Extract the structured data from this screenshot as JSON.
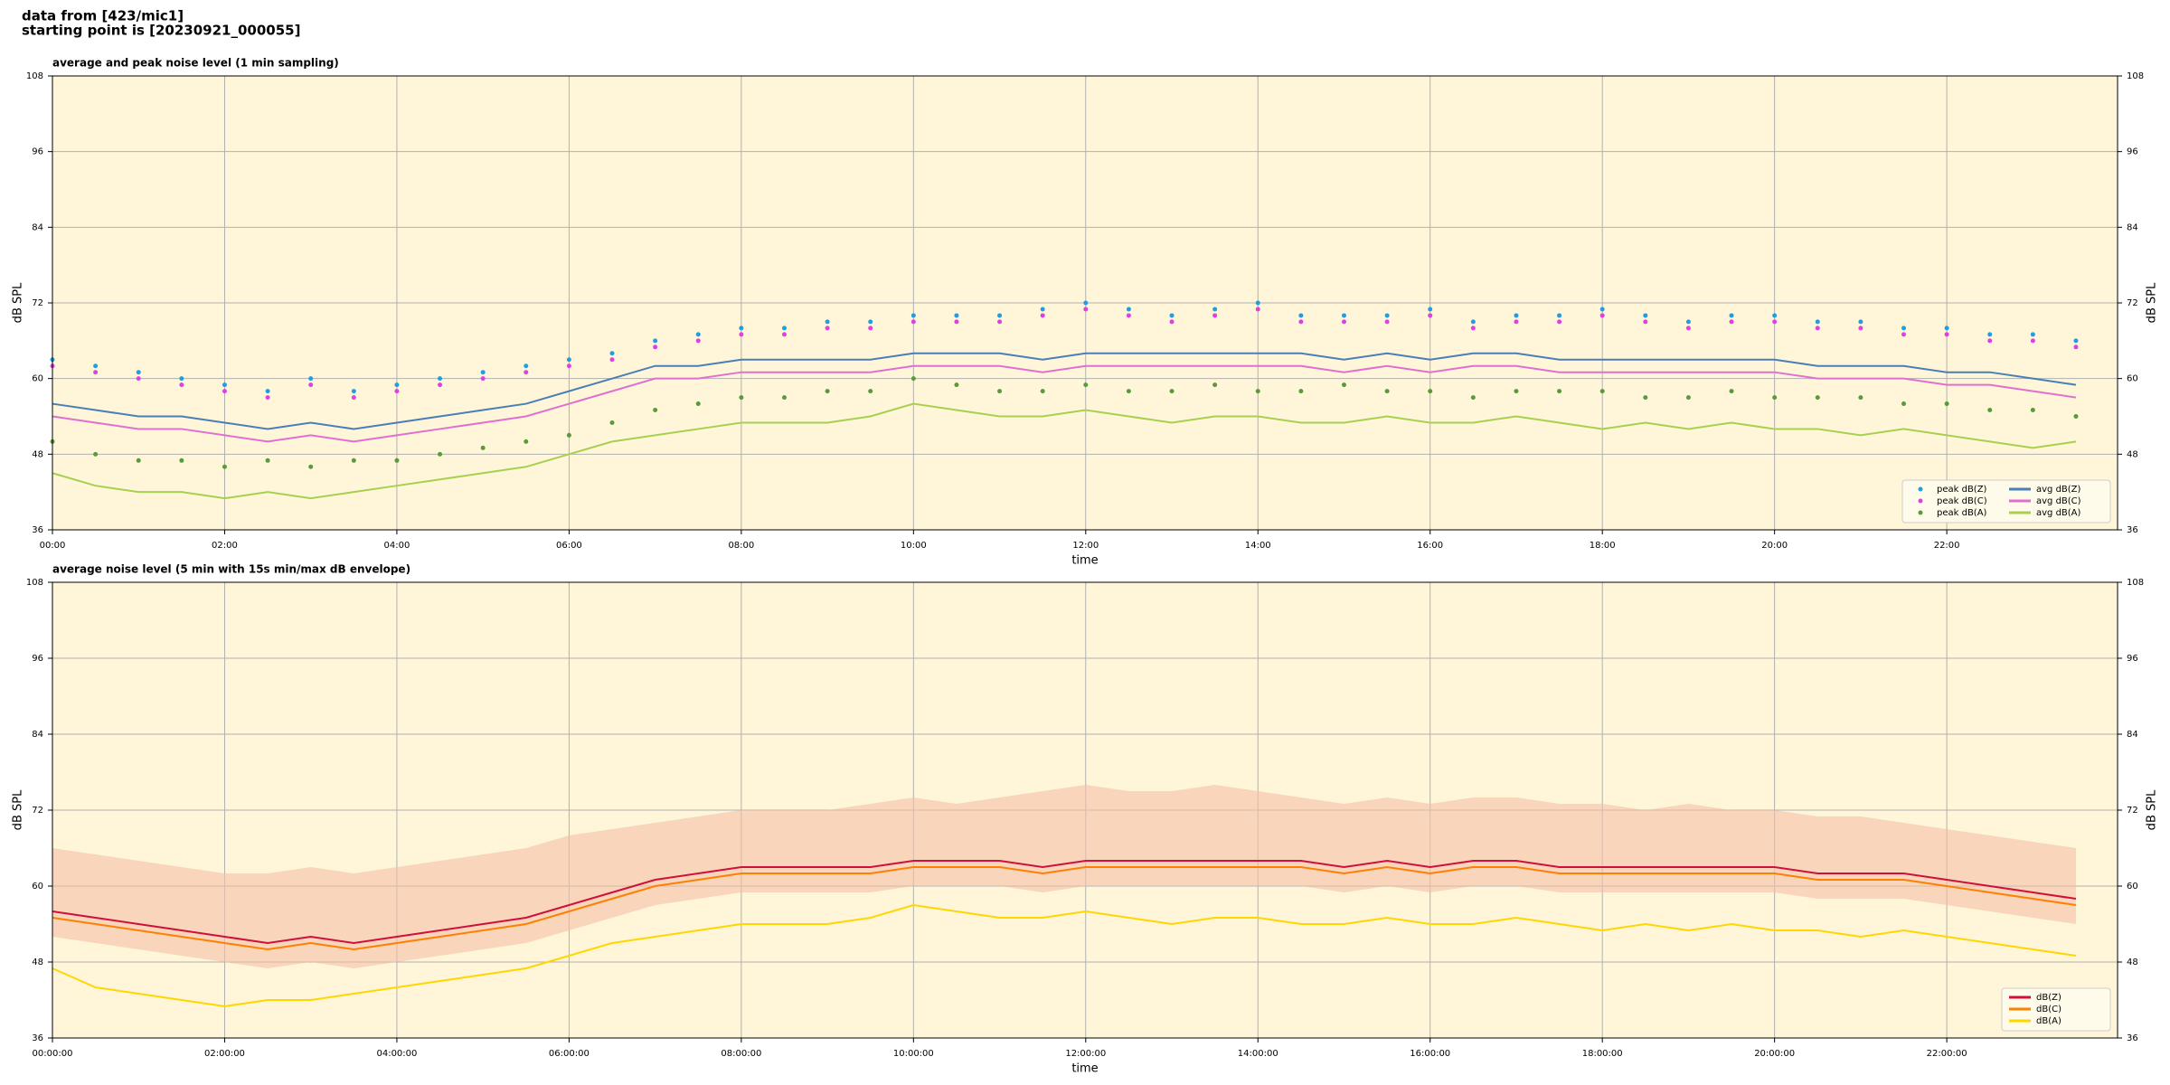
{
  "header": {
    "lines": [
      "data from [423/mic1]",
      "starting point is [20230921_000055]"
    ]
  },
  "chart_data": [
    {
      "type": "line",
      "title": "average and peak noise level (1 min sampling)",
      "xlabel": "time",
      "ylabel": "dB SPL",
      "x": [
        "00:00",
        "00:30",
        "01:00",
        "01:30",
        "02:00",
        "02:30",
        "03:00",
        "03:30",
        "04:00",
        "04:30",
        "05:00",
        "05:30",
        "06:00",
        "06:30",
        "07:00",
        "07:30",
        "08:00",
        "08:30",
        "09:00",
        "09:30",
        "10:00",
        "10:30",
        "11:00",
        "11:30",
        "12:00",
        "12:30",
        "13:00",
        "13:30",
        "14:00",
        "14:30",
        "15:00",
        "15:30",
        "16:00",
        "16:30",
        "17:00",
        "17:30",
        "18:00",
        "18:30",
        "19:00",
        "19:30",
        "20:00",
        "20:30",
        "21:00",
        "21:30",
        "22:00",
        "22:30",
        "23:00",
        "23:30"
      ],
      "xlim": [
        "00:00",
        "23:59"
      ],
      "xticks": [
        "00:00",
        "02:00",
        "04:00",
        "06:00",
        "08:00",
        "10:00",
        "12:00",
        "14:00",
        "16:00",
        "18:00",
        "20:00",
        "22:00"
      ],
      "ylim": [
        36,
        108
      ],
      "yticks": [
        36,
        48,
        60,
        72,
        84,
        96,
        108
      ],
      "grid": true,
      "background": "#fff6da",
      "legend": {
        "loc": "lower right",
        "ncol": 2
      },
      "series": [
        {
          "name": "peak dB(Z)",
          "marker": "dot",
          "color": "#1f9fe0",
          "values": [
            63,
            62,
            61,
            60,
            59,
            58,
            60,
            58,
            59,
            60,
            61,
            62,
            63,
            64,
            66,
            67,
            68,
            68,
            69,
            69,
            70,
            70,
            70,
            71,
            72,
            71,
            70,
            71,
            72,
            70,
            70,
            70,
            71,
            69,
            70,
            70,
            71,
            70,
            69,
            70,
            70,
            69,
            69,
            68,
            68,
            67,
            67,
            66
          ]
        },
        {
          "name": "peak dB(C)",
          "marker": "dot",
          "color": "#e040e0",
          "values": [
            62,
            61,
            60,
            59,
            58,
            57,
            59,
            57,
            58,
            59,
            60,
            61,
            62,
            63,
            65,
            66,
            67,
            67,
            68,
            68,
            69,
            69,
            69,
            70,
            71,
            70,
            69,
            70,
            71,
            69,
            69,
            69,
            70,
            68,
            69,
            69,
            70,
            69,
            68,
            69,
            69,
            68,
            68,
            67,
            67,
            66,
            66,
            65
          ]
        },
        {
          "name": "peak dB(A)",
          "marker": "dot",
          "color": "#5a9a3a",
          "values": [
            50,
            48,
            47,
            47,
            46,
            47,
            46,
            47,
            47,
            48,
            49,
            50,
            51,
            53,
            55,
            56,
            57,
            57,
            58,
            58,
            60,
            59,
            58,
            58,
            59,
            58,
            58,
            59,
            58,
            58,
            59,
            58,
            58,
            57,
            58,
            58,
            58,
            57,
            57,
            58,
            57,
            57,
            57,
            56,
            56,
            55,
            55,
            54
          ]
        },
        {
          "name": "avg dB(Z)",
          "marker": "line",
          "color": "#4a7fb5",
          "values": [
            56,
            55,
            54,
            54,
            53,
            52,
            53,
            52,
            53,
            54,
            55,
            56,
            58,
            60,
            62,
            62,
            63,
            63,
            63,
            63,
            64,
            64,
            64,
            63,
            64,
            64,
            64,
            64,
            64,
            64,
            63,
            64,
            63,
            64,
            64,
            63,
            63,
            63,
            63,
            63,
            63,
            62,
            62,
            62,
            61,
            61,
            60,
            59
          ]
        },
        {
          "name": "avg dB(C)",
          "marker": "line",
          "color": "#e070d0",
          "values": [
            54,
            53,
            52,
            52,
            51,
            50,
            51,
            50,
            51,
            52,
            53,
            54,
            56,
            58,
            60,
            60,
            61,
            61,
            61,
            61,
            62,
            62,
            62,
            61,
            62,
            62,
            62,
            62,
            62,
            62,
            61,
            62,
            61,
            62,
            62,
            61,
            61,
            61,
            61,
            61,
            61,
            60,
            60,
            60,
            59,
            59,
            58,
            57
          ]
        },
        {
          "name": "avg dB(A)",
          "marker": "line",
          "color": "#a8d050",
          "values": [
            45,
            43,
            42,
            42,
            41,
            42,
            41,
            42,
            43,
            44,
            45,
            46,
            48,
            50,
            51,
            52,
            53,
            53,
            53,
            54,
            56,
            55,
            54,
            54,
            55,
            54,
            53,
            54,
            54,
            53,
            53,
            54,
            53,
            53,
            54,
            53,
            52,
            53,
            52,
            53,
            52,
            52,
            51,
            52,
            51,
            50,
            49,
            50
          ]
        }
      ]
    },
    {
      "type": "line",
      "title": "average noise level (5 min with 15s min/max dB envelope)",
      "xlabel": "time",
      "ylabel": "dB SPL",
      "x": [
        "00:00:00",
        "00:30:00",
        "01:00:00",
        "01:30:00",
        "02:00:00",
        "02:30:00",
        "03:00:00",
        "03:30:00",
        "04:00:00",
        "04:30:00",
        "05:00:00",
        "05:30:00",
        "06:00:00",
        "06:30:00",
        "07:00:00",
        "07:30:00",
        "08:00:00",
        "08:30:00",
        "09:00:00",
        "09:30:00",
        "10:00:00",
        "10:30:00",
        "11:00:00",
        "11:30:00",
        "12:00:00",
        "12:30:00",
        "13:00:00",
        "13:30:00",
        "14:00:00",
        "14:30:00",
        "15:00:00",
        "15:30:00",
        "16:00:00",
        "16:30:00",
        "17:00:00",
        "17:30:00",
        "18:00:00",
        "18:30:00",
        "19:00:00",
        "19:30:00",
        "20:00:00",
        "20:30:00",
        "21:00:00",
        "21:30:00",
        "22:00:00",
        "22:30:00",
        "23:00:00",
        "23:30:00"
      ],
      "xlim": [
        "00:00:00",
        "23:59:00"
      ],
      "xticks": [
        "00:00:00",
        "02:00:00",
        "04:00:00",
        "06:00:00",
        "08:00:00",
        "10:00:00",
        "12:00:00",
        "14:00:00",
        "16:00:00",
        "18:00:00",
        "20:00:00",
        "22:00:00"
      ],
      "ylim": [
        36,
        108
      ],
      "yticks": [
        36,
        48,
        60,
        72,
        84,
        96,
        108
      ],
      "grid": true,
      "background": "#fff6da",
      "legend": {
        "loc": "lower right",
        "ncol": 1
      },
      "envelope": {
        "color": "#f4bfa6",
        "upper": [
          66,
          65,
          64,
          63,
          62,
          62,
          63,
          62,
          63,
          64,
          65,
          66,
          68,
          69,
          70,
          71,
          72,
          72,
          72,
          73,
          74,
          73,
          74,
          75,
          76,
          75,
          75,
          76,
          75,
          74,
          73,
          74,
          73,
          74,
          74,
          73,
          73,
          72,
          73,
          72,
          72,
          71,
          71,
          70,
          69,
          68,
          67,
          66
        ],
        "lower": [
          52,
          51,
          50,
          49,
          48,
          47,
          48,
          47,
          48,
          49,
          50,
          51,
          53,
          55,
          57,
          58,
          59,
          59,
          59,
          59,
          60,
          60,
          60,
          59,
          60,
          60,
          60,
          60,
          60,
          60,
          59,
          60,
          59,
          60,
          60,
          59,
          59,
          59,
          59,
          59,
          59,
          58,
          58,
          58,
          57,
          56,
          55,
          54
        ]
      },
      "series": [
        {
          "name": "dB(Z)",
          "marker": "line",
          "color": "#d0103a",
          "values": [
            56,
            55,
            54,
            53,
            52,
            51,
            52,
            51,
            52,
            53,
            54,
            55,
            57,
            59,
            61,
            62,
            63,
            63,
            63,
            63,
            64,
            64,
            64,
            63,
            64,
            64,
            64,
            64,
            64,
            64,
            63,
            64,
            63,
            64,
            64,
            63,
            63,
            63,
            63,
            63,
            63,
            62,
            62,
            62,
            61,
            60,
            59,
            58
          ]
        },
        {
          "name": "dB(C)",
          "marker": "line",
          "color": "#ff8000",
          "values": [
            55,
            54,
            53,
            52,
            51,
            50,
            51,
            50,
            51,
            52,
            53,
            54,
            56,
            58,
            60,
            61,
            62,
            62,
            62,
            62,
            63,
            63,
            63,
            62,
            63,
            63,
            63,
            63,
            63,
            63,
            62,
            63,
            62,
            63,
            63,
            62,
            62,
            62,
            62,
            62,
            62,
            61,
            61,
            61,
            60,
            59,
            58,
            57
          ]
        },
        {
          "name": "dB(A)",
          "marker": "line",
          "color": "#ffd700",
          "values": [
            47,
            44,
            43,
            42,
            41,
            42,
            42,
            43,
            44,
            45,
            46,
            47,
            49,
            51,
            52,
            53,
            54,
            54,
            54,
            55,
            57,
            56,
            55,
            55,
            56,
            55,
            54,
            55,
            55,
            54,
            54,
            55,
            54,
            54,
            55,
            54,
            53,
            54,
            53,
            54,
            53,
            53,
            52,
            53,
            52,
            51,
            50,
            49
          ]
        }
      ]
    }
  ]
}
